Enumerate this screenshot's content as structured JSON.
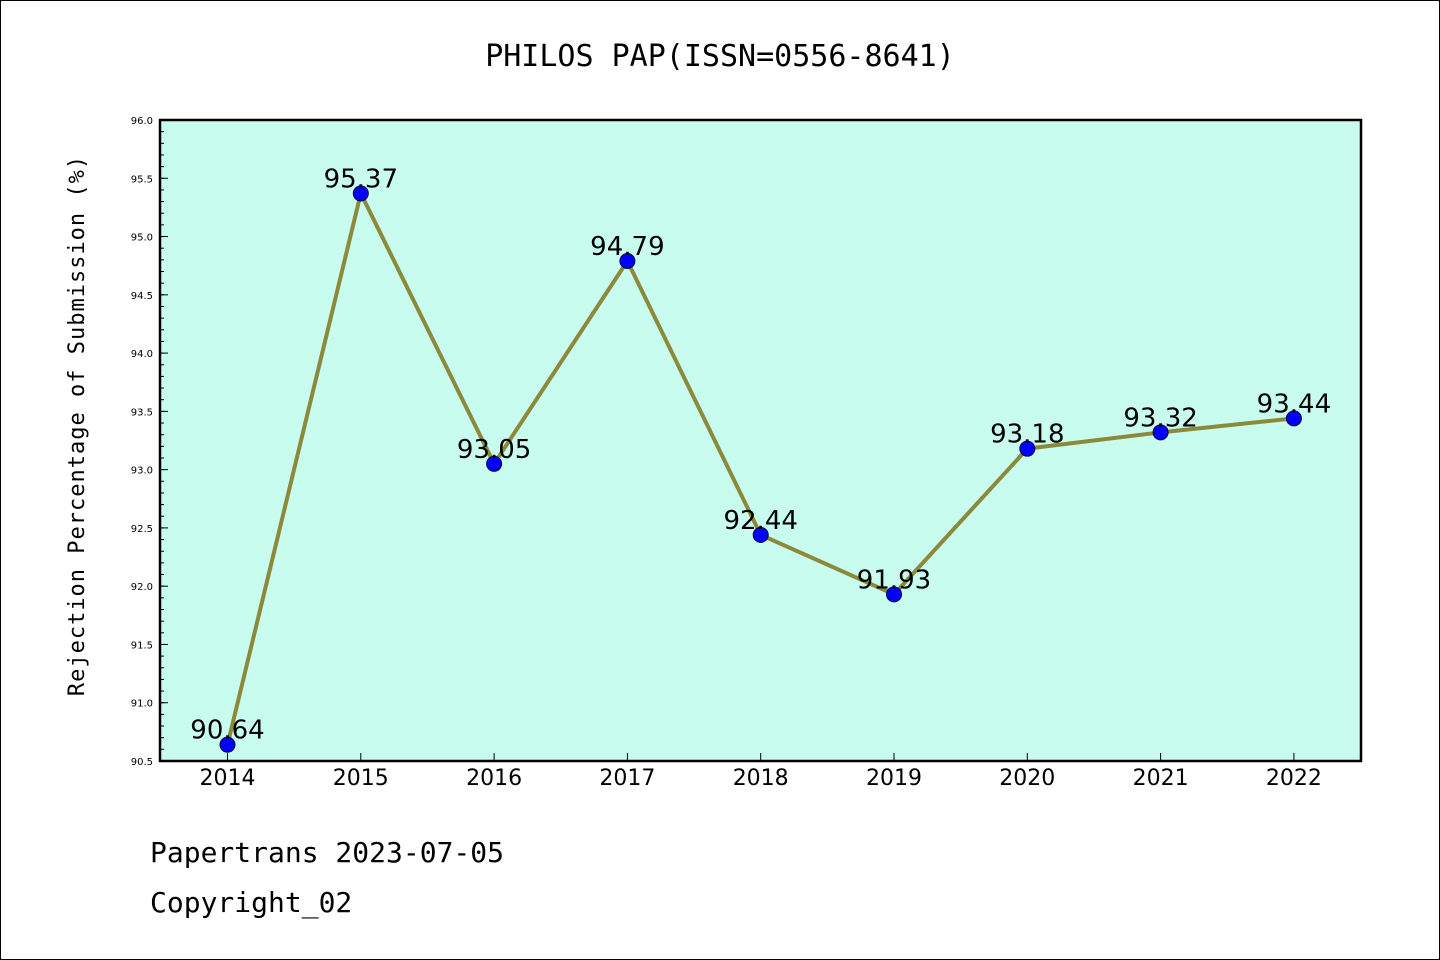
{
  "chart_data": {
    "type": "line",
    "title": "PHILOS PAP(ISSN=0556-8641)",
    "xlabel": "",
    "ylabel": "Rejection Percentage of Submission (%)",
    "categories": [
      "2014",
      "2015",
      "2016",
      "2017",
      "2018",
      "2019",
      "2020",
      "2021",
      "2022"
    ],
    "series": [
      {
        "values": [
          90.64,
          95.37,
          93.05,
          94.79,
          92.44,
          91.93,
          93.18,
          93.32,
          93.44
        ]
      }
    ],
    "data_labels": [
      "90.64",
      "95.37",
      "93.05",
      "94.79",
      "92.44",
      "91.93",
      "93.18",
      "93.32",
      "93.44"
    ],
    "ylim": [
      90.5,
      96.0
    ],
    "yticks": [
      "90.5",
      "91.0",
      "91.5",
      "92.0",
      "92.5",
      "93.0",
      "93.5",
      "94.0",
      "94.5",
      "95.0",
      "95.5",
      "96.0"
    ],
    "grid": false,
    "legend": "none",
    "colors": {
      "plot_bg": "#c8fcee",
      "line": "#8b8a3a",
      "marker": "#0000ff"
    }
  },
  "footer": {
    "line1": "Papertrans 2023-07-05",
    "line2": "Copyright_02"
  }
}
